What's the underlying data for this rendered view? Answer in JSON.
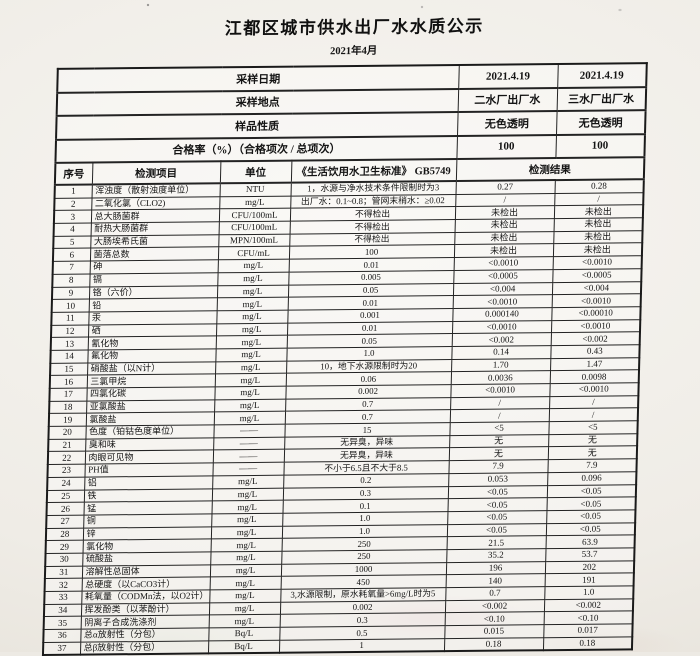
{
  "title": "江都区城市供水出厂水水质公示",
  "subtitle": "2021年4月",
  "info_rows": [
    {
      "label": "采样日期",
      "plant2": "2021.4.19",
      "plant3": "2021.4.19"
    },
    {
      "label": "采样地点",
      "plant2": "二水厂出厂水",
      "plant3": "三水厂出厂水"
    },
    {
      "label": "样品性质",
      "plant2": "无色透明",
      "plant3": "无色透明"
    },
    {
      "label": "合格率（%）（合格项次 / 总项次）",
      "plant2": "100",
      "plant3": "100"
    }
  ],
  "columns": {
    "index": "序号",
    "item": "检测项目",
    "unit": "单位",
    "standard": "《生活饮用水卫生标准》 GB5749",
    "result": "检测结果"
  },
  "rows": [
    [
      "1",
      "浑浊度（散射浊度单位）",
      "NTU",
      "1，水源与净水技术条件限制时为3",
      "0.27",
      "0.28"
    ],
    [
      "2",
      "二氧化氯（CLO2)",
      "mg/L",
      "出厂水：0.1~0.8；管网末稍水：≥0.02",
      "/",
      "/"
    ],
    [
      "3",
      "总大肠菌群",
      "CFU/100mL",
      "不得检出",
      "未检出",
      "未检出"
    ],
    [
      "4",
      "耐热大肠菌群",
      "CFU/100mL",
      "不得检出",
      "未检出",
      "未检出"
    ],
    [
      "5",
      "大肠埃希氏菌",
      "MPN/100mL",
      "不得检出",
      "未检出",
      "未检出"
    ],
    [
      "6",
      "菌落总数",
      "CFU/mL",
      "100",
      "未检出",
      "未检出"
    ],
    [
      "7",
      "砷",
      "mg/L",
      "0.01",
      "<0.0010",
      "<0.0010"
    ],
    [
      "8",
      "镉",
      "mg/L",
      "0.005",
      "<0.0005",
      "<0.0005"
    ],
    [
      "9",
      "铬（六价）",
      "mg/L",
      "0.05",
      "<0.004",
      "<0.004"
    ],
    [
      "10",
      "铅",
      "mg/L",
      "0.01",
      "<0.0010",
      "<0.0010"
    ],
    [
      "11",
      "汞",
      "mg/L",
      "0.001",
      "0.000140",
      "<0.00010"
    ],
    [
      "12",
      "硒",
      "mg/L",
      "0.01",
      "<0.0010",
      "<0.0010"
    ],
    [
      "13",
      "氰化物",
      "mg/L",
      "0.05",
      "<0.002",
      "<0.002"
    ],
    [
      "14",
      "氟化物",
      "mg/L",
      "1.0",
      "0.14",
      "0.43"
    ],
    [
      "15",
      "硝酸盐（以N计）",
      "mg/L",
      "10，地下水源限制时为20",
      "1.70",
      "1.47"
    ],
    [
      "16",
      "三氯甲烷",
      "mg/L",
      "0.06",
      "0.0036",
      "0.0098"
    ],
    [
      "17",
      "四氯化碳",
      "mg/L",
      "0.002",
      "<0.0010",
      "<0.0010"
    ],
    [
      "18",
      "亚氯酸盐",
      "mg/L",
      "0.7",
      "/",
      "/"
    ],
    [
      "19",
      "氯酸盐",
      "mg/L",
      "0.7",
      "/",
      "/"
    ],
    [
      "20",
      "色度（铂钴色度单位）",
      "——",
      "15",
      "<5",
      "<5"
    ],
    [
      "21",
      "臭和味",
      "——",
      "无异臭，异味",
      "无",
      "无"
    ],
    [
      "22",
      "肉眼可见物",
      "——",
      "无异臭，异味",
      "无",
      "无"
    ],
    [
      "23",
      "PH值",
      "——",
      "不小于6.5且不大于8.5",
      "7.9",
      "7.9"
    ],
    [
      "24",
      "铝",
      "mg/L",
      "0.2",
      "0.053",
      "0.096"
    ],
    [
      "25",
      "铁",
      "mg/L",
      "0.3",
      "<0.05",
      "<0.05"
    ],
    [
      "26",
      "锰",
      "mg/L",
      "0.1",
      "<0.05",
      "<0.05"
    ],
    [
      "27",
      "铜",
      "mg/L",
      "1.0",
      "<0.05",
      "<0.05"
    ],
    [
      "28",
      "锌",
      "mg/L",
      "1.0",
      "<0.05",
      "<0.05"
    ],
    [
      "29",
      "氯化物",
      "mg/L",
      "250",
      "21.5",
      "63.9"
    ],
    [
      "30",
      "硫酸盐",
      "mg/L",
      "250",
      "35.2",
      "53.7"
    ],
    [
      "31",
      "溶解性总固体",
      "mg/L",
      "1000",
      "196",
      "202"
    ],
    [
      "32",
      "总硬度（以CaCO3计）",
      "mg/L",
      "450",
      "140",
      "191"
    ],
    [
      "33",
      "耗氧量（CODMn法，以O2计）",
      "mg/L",
      "3,水源限制，原水耗氧量>6mg/L时为5",
      "0.7",
      "1.0"
    ],
    [
      "34",
      "挥发酚类（以苯酚计）",
      "mg/L",
      "0.002",
      "<0.002",
      "<0.002"
    ],
    [
      "35",
      "阴离子合成洗涤剂",
      "mg/L",
      "0.3",
      "<0.10",
      "<0.10"
    ],
    [
      "36",
      "总α放射性（分包）",
      "Bq/L",
      "0.5",
      "0.015",
      "0.017"
    ],
    [
      "37",
      "总β放射性（分包）",
      "Bq/L",
      "1",
      "0.18",
      "0.18"
    ]
  ]
}
